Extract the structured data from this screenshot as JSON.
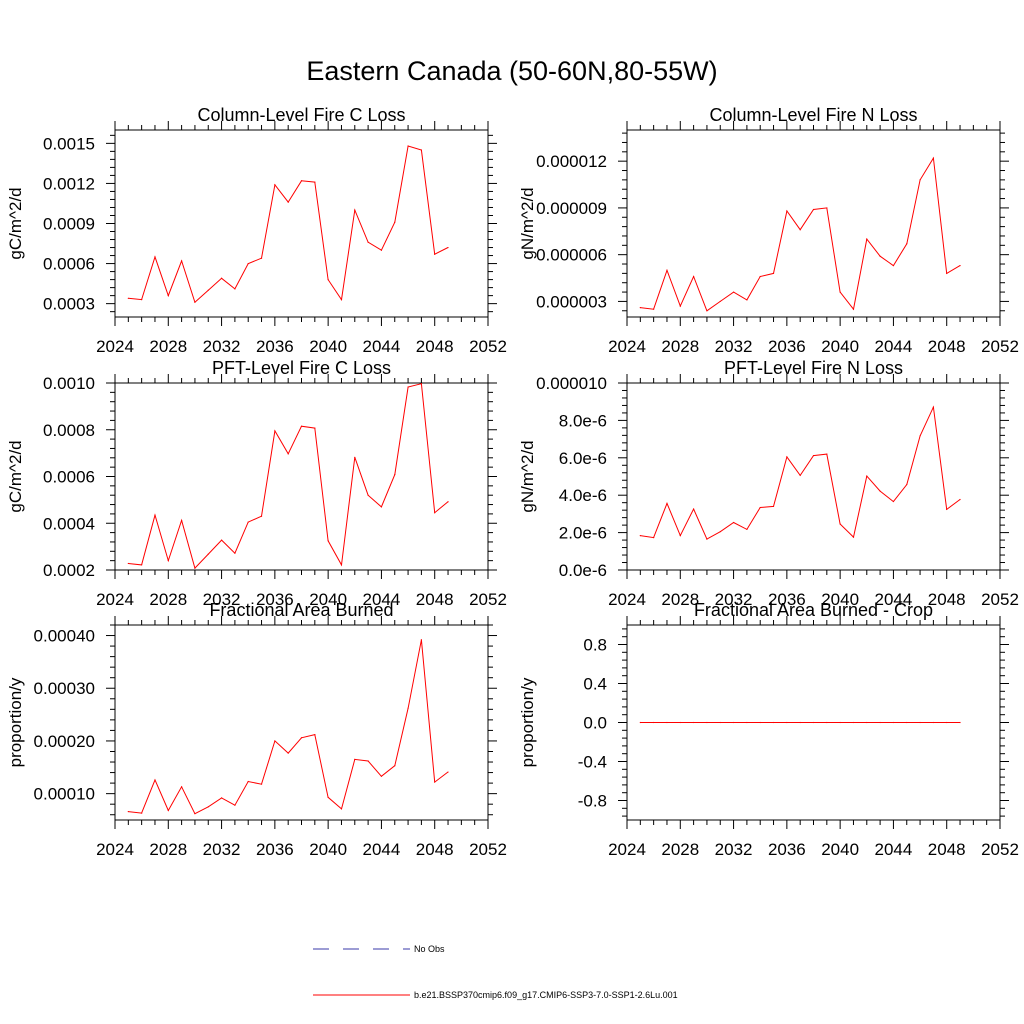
{
  "title": "Eastern Canada (50-60N,80-55W)",
  "legend": {
    "items": [
      {
        "label": "No Obs",
        "color": "#3a3aa8",
        "style": "dashed"
      },
      {
        "label": "b.e21.BSSP370cmip6.f09_g17.CMIP6-SSP3-7.0-SSP1-2.6Lu.001",
        "color": "#ff0000",
        "style": "solid"
      }
    ]
  },
  "chart_data": [
    {
      "type": "line",
      "title": "Column-Level Fire C Loss",
      "ylabel": "gC/m^2/d",
      "xlim": [
        2024,
        2052
      ],
      "ylim": [
        0.0002,
        0.0016
      ],
      "xticks": [
        2024,
        2028,
        2032,
        2036,
        2040,
        2044,
        2048,
        2052
      ],
      "xticklabels": [
        "2024",
        "2028",
        "2032",
        "2036",
        "2040",
        "2044",
        "2048",
        "2052"
      ],
      "yticks": [
        0.0003,
        0.0006,
        0.0009,
        0.0012,
        0.0015
      ],
      "yticklabels": [
        "0.0003",
        "0.0006",
        "0.0009",
        "0.0012",
        "0.0015"
      ],
      "x": [
        2025,
        2026,
        2027,
        2028,
        2029,
        2030,
        2031,
        2032,
        2033,
        2034,
        2035,
        2036,
        2037,
        2038,
        2039,
        2040,
        2041,
        2042,
        2043,
        2044,
        2045,
        2046,
        2047,
        2048,
        2049
      ],
      "series": [
        {
          "color": "#ff0000",
          "values": [
            0.00034,
            0.00033,
            0.00065,
            0.00036,
            0.00062,
            0.00031,
            0.0004,
            0.00049,
            0.00041,
            0.0006,
            0.00064,
            0.00119,
            0.00106,
            0.00122,
            0.00121,
            0.00048,
            0.00033,
            0.001,
            0.00076,
            0.0007,
            0.00091,
            0.00148,
            0.00145,
            0.00067,
            0.00072
          ]
        }
      ]
    },
    {
      "type": "line",
      "title": "Column-Level Fire N Loss",
      "ylabel": "gN/m^2/d",
      "xlim": [
        2024,
        2052
      ],
      "ylim": [
        2e-06,
        1.4e-05
      ],
      "xticks": [
        2024,
        2028,
        2032,
        2036,
        2040,
        2044,
        2048,
        2052
      ],
      "xticklabels": [
        "2024",
        "2028",
        "2032",
        "2036",
        "2040",
        "2044",
        "2048",
        "2052"
      ],
      "yticks": [
        3e-06,
        6e-06,
        9e-06,
        1.2e-05
      ],
      "yticklabels": [
        "0.000003",
        "0.000006",
        "0.000009",
        "0.000012"
      ],
      "x": [
        2025,
        2026,
        2027,
        2028,
        2029,
        2030,
        2031,
        2032,
        2033,
        2034,
        2035,
        2036,
        2037,
        2038,
        2039,
        2040,
        2041,
        2042,
        2043,
        2044,
        2045,
        2046,
        2047,
        2048,
        2049
      ],
      "series": [
        {
          "color": "#ff0000",
          "values": [
            2.6e-06,
            2.5e-06,
            5e-06,
            2.7e-06,
            4.6e-06,
            2.4e-06,
            3e-06,
            3.6e-06,
            3.1e-06,
            4.6e-06,
            4.8e-06,
            8.8e-06,
            7.6e-06,
            8.9e-06,
            9e-06,
            3.6e-06,
            2.5e-06,
            7e-06,
            5.9e-06,
            5.3e-06,
            6.7e-06,
            1.08e-05,
            1.22e-05,
            4.8e-06,
            5.3e-06
          ]
        }
      ]
    },
    {
      "type": "line",
      "title": "PFT-Level Fire C Loss",
      "ylabel": "gC/m^2/d",
      "xlim": [
        2024,
        2052
      ],
      "ylim": [
        0.0002,
        0.001
      ],
      "xticks": [
        2024,
        2028,
        2032,
        2036,
        2040,
        2044,
        2048,
        2052
      ],
      "xticklabels": [
        "2024",
        "2028",
        "2032",
        "2036",
        "2040",
        "2044",
        "2048",
        "2052"
      ],
      "yticks": [
        0.0002,
        0.0004,
        0.0006,
        0.0008,
        0.001
      ],
      "yticklabels": [
        "0.0002",
        "0.0004",
        "0.0006",
        "0.0008",
        "0.0010"
      ],
      "x": [
        2025,
        2026,
        2027,
        2028,
        2029,
        2030,
        2031,
        2032,
        2033,
        2034,
        2035,
        2036,
        2037,
        2038,
        2039,
        2040,
        2041,
        2042,
        2043,
        2044,
        2045,
        2046,
        2047,
        2048,
        2049
      ],
      "series": [
        {
          "color": "#ff0000",
          "values": [
            0.000228,
            0.000222,
            0.000435,
            0.00024,
            0.000412,
            0.000208,
            0.000268,
            0.000328,
            0.000272,
            0.000405,
            0.00043,
            0.000795,
            0.000697,
            0.000815,
            0.000807,
            0.000325,
            0.000222,
            0.000682,
            0.00052,
            0.00047,
            0.000608,
            0.000983,
            0.000997,
            0.000445,
            0.000492
          ]
        }
      ]
    },
    {
      "type": "line",
      "title": "PFT-Level Fire N Loss",
      "ylabel": "gN/m^2/d",
      "xlim": [
        2024,
        2052
      ],
      "ylim": [
        0,
        1e-05
      ],
      "xticks": [
        2024,
        2028,
        2032,
        2036,
        2040,
        2044,
        2048,
        2052
      ],
      "xticklabels": [
        "2024",
        "2028",
        "2032",
        "2036",
        "2040",
        "2044",
        "2048",
        "2052"
      ],
      "yticks": [
        0,
        2e-06,
        4e-06,
        6e-06,
        8e-06,
        1e-05
      ],
      "yticklabels": [
        "0.0e-6",
        "2.0e-6",
        "4.0e-6",
        "6.0e-6",
        "8.0e-6",
        "0.000010"
      ],
      "x": [
        2025,
        2026,
        2027,
        2028,
        2029,
        2030,
        2031,
        2032,
        2033,
        2034,
        2035,
        2036,
        2037,
        2038,
        2039,
        2040,
        2041,
        2042,
        2043,
        2044,
        2045,
        2046,
        2047,
        2048,
        2049
      ],
      "series": [
        {
          "color": "#ff0000",
          "values": [
            1.84e-06,
            1.73e-06,
            3.56e-06,
            1.84e-06,
            3.26e-06,
            1.65e-06,
            2.05e-06,
            2.54e-06,
            2.17e-06,
            3.34e-06,
            3.4e-06,
            6.05e-06,
            5.06e-06,
            6.12e-06,
            6.2e-06,
            2.46e-06,
            1.76e-06,
            5.02e-06,
            4.22e-06,
            3.66e-06,
            4.57e-06,
            7.17e-06,
            8.71e-06,
            3.24e-06,
            3.77e-06
          ]
        }
      ]
    },
    {
      "type": "line",
      "title": "Fractional Area Burned",
      "ylabel": "proportion/y",
      "xlim": [
        2024,
        2052
      ],
      "ylim": [
        5e-05,
        0.00042
      ],
      "xticks": [
        2024,
        2028,
        2032,
        2036,
        2040,
        2044,
        2048,
        2052
      ],
      "xticklabels": [
        "2024",
        "2028",
        "2032",
        "2036",
        "2040",
        "2044",
        "2048",
        "2052"
      ],
      "yticks": [
        0.0001,
        0.0002,
        0.0003,
        0.0004
      ],
      "yticklabels": [
        "0.00010",
        "0.00020",
        "0.00030",
        "0.00040"
      ],
      "x": [
        2025,
        2026,
        2027,
        2028,
        2029,
        2030,
        2031,
        2032,
        2033,
        2034,
        2035,
        2036,
        2037,
        2038,
        2039,
        2040,
        2041,
        2042,
        2043,
        2044,
        2045,
        2046,
        2047,
        2048,
        2049
      ],
      "series": [
        {
          "color": "#ff0000",
          "values": [
            6.6e-05,
            6.3e-05,
            0.000126,
            6.8e-05,
            0.000113,
            6.2e-05,
            7.5e-05,
            9.2e-05,
            7.8e-05,
            0.000123,
            0.000118,
            0.0002,
            0.000177,
            0.000206,
            0.000212,
            9.3e-05,
            7.1e-05,
            0.000165,
            0.000162,
            0.000133,
            0.000153,
            0.000262,
            0.000392,
            0.000122,
            0.000141
          ]
        }
      ]
    },
    {
      "type": "line",
      "title": "Fractional Area Burned - Crop",
      "ylabel": "proportion/y",
      "xlim": [
        2024,
        2052
      ],
      "ylim": [
        -1,
        1
      ],
      "xticks": [
        2024,
        2028,
        2032,
        2036,
        2040,
        2044,
        2048,
        2052
      ],
      "xticklabels": [
        "2024",
        "2028",
        "2032",
        "2036",
        "2040",
        "2044",
        "2048",
        "2052"
      ],
      "yticks": [
        -0.8,
        -0.4,
        0.0,
        0.4,
        0.8
      ],
      "yticklabels": [
        "-0.8",
        "-0.4",
        "0.0",
        "0.4",
        "0.8"
      ],
      "x": [
        2025,
        2026,
        2027,
        2028,
        2029,
        2030,
        2031,
        2032,
        2033,
        2034,
        2035,
        2036,
        2037,
        2038,
        2039,
        2040,
        2041,
        2042,
        2043,
        2044,
        2045,
        2046,
        2047,
        2048,
        2049
      ],
      "series": [
        {
          "color": "#ff0000",
          "values": [
            0,
            0,
            0,
            0,
            0,
            0,
            0,
            0,
            0,
            0,
            0,
            0,
            0,
            0,
            0,
            0,
            0,
            0,
            0,
            0,
            0,
            0,
            0,
            0,
            0
          ]
        }
      ]
    }
  ]
}
